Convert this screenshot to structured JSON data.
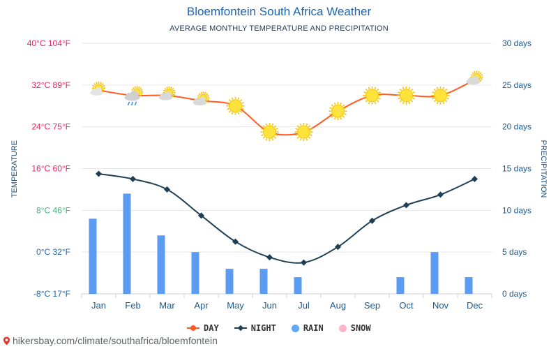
{
  "chart_data": {
    "type": "line+bar",
    "title": "Bloemfontein South Africa Weather",
    "subtitle": "AVERAGE MONTHLY TEMPERATURE AND PRECIPITATION",
    "left_axis_label": "TEMPERATURE",
    "right_axis_label": "PRECIPITATION",
    "categories": [
      "Jan",
      "Feb",
      "Mar",
      "Apr",
      "May",
      "Jun",
      "Jul",
      "Aug",
      "Sep",
      "Oct",
      "Nov",
      "Dec"
    ],
    "temp_range_c": [
      -8,
      40
    ],
    "left_ticks": [
      {
        "value": 40,
        "label": "40°C 104°F",
        "color": "#e0245e"
      },
      {
        "value": 32,
        "label": "32°C 89°F",
        "color": "#e0245e"
      },
      {
        "value": 24,
        "label": "24°C 75°F",
        "color": "#e0245e"
      },
      {
        "value": 16,
        "label": "16°C 60°F",
        "color": "#e0245e"
      },
      {
        "value": 8,
        "label": "8°C 46°F",
        "color": "#3cb371"
      },
      {
        "value": 0,
        "label": "0°C 32°F",
        "color": "#1a66b3"
      },
      {
        "value": -8,
        "label": "-8°C 17°F",
        "color": "#1a66b3"
      }
    ],
    "precip_range_days": [
      0,
      30
    ],
    "right_ticks": [
      {
        "value": 30,
        "label": "30 days"
      },
      {
        "value": 25,
        "label": "25 days"
      },
      {
        "value": 20,
        "label": "20 days"
      },
      {
        "value": 15,
        "label": "15 days"
      },
      {
        "value": 10,
        "label": "10 days"
      },
      {
        "value": 5,
        "label": "5 days"
      },
      {
        "value": 0,
        "label": "0 days"
      }
    ],
    "series": [
      {
        "name": "DAY",
        "unit": "°C",
        "values": [
          31,
          30,
          30,
          29,
          28,
          23,
          23,
          27,
          30,
          30,
          30,
          33
        ],
        "color": "#ff5a1f"
      },
      {
        "name": "NIGHT",
        "unit": "°C",
        "values": [
          15,
          14,
          12,
          7,
          2,
          -1,
          -2,
          1,
          6,
          9,
          11,
          14
        ],
        "color": "#1e3f55"
      },
      {
        "name": "RAIN",
        "unit": "days",
        "values": [
          9,
          12,
          7,
          5,
          3,
          3,
          2,
          0,
          0,
          2,
          5,
          2
        ],
        "color": "#5b9cf2"
      },
      {
        "name": "SNOW",
        "unit": "days",
        "values": [
          0,
          0,
          0,
          0,
          0,
          0,
          0,
          0,
          0,
          0,
          0,
          0
        ],
        "color": "#ffb6c9"
      }
    ],
    "weather_icons": [
      "partly-sunny",
      "rain-cloud",
      "partly-cloudy",
      "partly-cloudy",
      "sunny",
      "sunny",
      "sunny",
      "sunny",
      "sunny",
      "sunny",
      "sunny",
      "partly-cloudy"
    ],
    "legend": [
      "DAY",
      "NIGHT",
      "RAIN",
      "SNOW"
    ]
  },
  "footer": {
    "text": "hikersbay.com/climate/southafrica/bloemfontein"
  }
}
